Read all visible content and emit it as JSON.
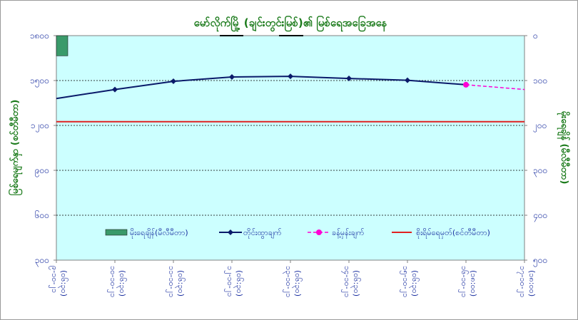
{
  "chart_data": {
    "type": "line",
    "title": "မော်လိုက်မြို့ (ချင်းတွင်းမြစ်)၏ မြစ်ရေအခြေအနေ",
    "ylabel_left": "မြစ်ရေမျက်နှာ (စင်တီမီတာ)",
    "ylabel_right": "မိုးရေချိန် (မီလီမီတာ)",
    "left_axis": {
      "min": 300,
      "max": 1800,
      "ticks": [
        300,
        600,
        900,
        1200,
        1500,
        1800
      ],
      "tick_labels": [
        "၃၀၀",
        "၆၀၀",
        "၉၀၀",
        "၁၂၀၀",
        "၁၅၀၀",
        "၁၈၀၀"
      ]
    },
    "right_axis": {
      "min": 0,
      "max": 500,
      "reversed": true,
      "ticks": [
        0,
        100,
        200,
        300,
        400,
        500
      ],
      "tick_labels": [
        "၀",
        "၁၀၀",
        "၂၀၀",
        "၃၀၀",
        "၄၀၀",
        "၅၀၀"
      ]
    },
    "categories": [
      [
        "၉-၁၀-၂၁",
        "(၀၆:၃၀)"
      ],
      [
        "၁၀-၁၀-၂၁",
        "(၀၆:၃၀)"
      ],
      [
        "၁၁-၁၀-၂၁",
        "(၀၆:၃၀)"
      ],
      [
        "၁၂-၁၀-၂၁",
        "(၀၆:၃၀)"
      ],
      [
        "၁၃-၁၀-၂၁",
        "(၀၆:၃၀)"
      ],
      [
        "၁၄-၁၀-၂၁",
        "(၀၆:၃၀)"
      ],
      [
        "၁၅-၁၀-၂၁",
        "(၀၆:၃၀)"
      ],
      [
        "၁၆-၁၀-၂၁",
        "(၁၈:၀၀)"
      ],
      [
        "၁၇-၁၀-၂၁",
        "(၁၈:၀၀)"
      ]
    ],
    "series": [
      {
        "name": "မိုးရေချိန်(မီလီမီတာ)",
        "kind": "bar",
        "axis": "right",
        "color": "#3a9a6a",
        "values": [
          45,
          null,
          null,
          null,
          null,
          null,
          null,
          null,
          null
        ]
      },
      {
        "name": "တိုင်းထွာချက်",
        "kind": "line",
        "axis": "left",
        "color": "#0a1a6a",
        "values": [
          1380,
          1440,
          1495,
          1524,
          1528,
          1514,
          1502,
          1472,
          null
        ]
      },
      {
        "name": "ခန့်မှန်းချက်",
        "kind": "dashed-line",
        "axis": "left",
        "color": "#ff00d4",
        "values": [
          null,
          null,
          null,
          null,
          null,
          null,
          null,
          1472,
          1440
        ]
      },
      {
        "name": "စိုးရိမ်ရေမှတ်(စင်တီမီတာ)",
        "kind": "hline",
        "axis": "left",
        "color": "#e02020",
        "value": 1225
      }
    ],
    "grid": "horizontal-dashed",
    "legend": "bottom-center"
  }
}
